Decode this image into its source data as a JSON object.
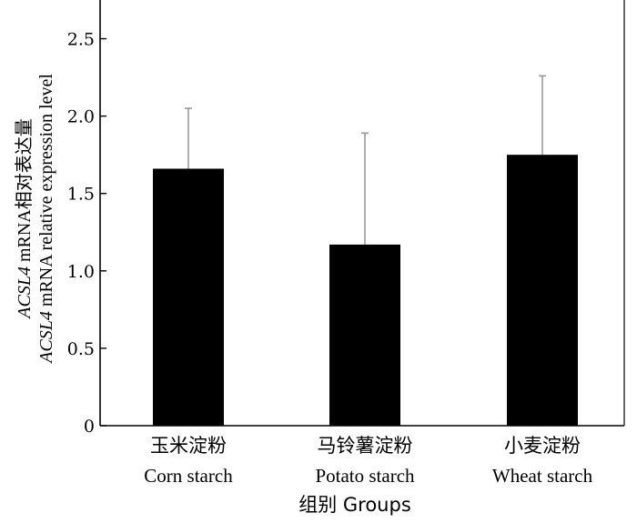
{
  "chart_data": {
    "type": "bar",
    "categories": [
      {
        "zh": "玉米淀粉",
        "en": "Corn starch"
      },
      {
        "zh": "马铃薯淀粉",
        "en": "Potato starch"
      },
      {
        "zh": "小麦淀粉",
        "en": "Wheat starch"
      }
    ],
    "values": [
      1.66,
      1.17,
      1.75
    ],
    "error_bars": [
      0.39,
      0.72,
      0.51
    ],
    "ylim": [
      0,
      2.75
    ],
    "yticks": [
      "0",
      "0.5",
      "1.0",
      "1.5",
      "2.0",
      "2.5"
    ],
    "ytick_values": [
      0,
      0.5,
      1.0,
      1.5,
      2.0,
      2.5
    ],
    "xlabel": "组别 Groups",
    "ylabel_line1": {
      "italic": "ACSL4",
      "rest": " mRNA相对表达量"
    },
    "ylabel_line2": {
      "italic": "ACSL4",
      "rest": " mRNA relative expression level"
    },
    "grid": false,
    "bar_color": "#000000",
    "error_bar_color": "#999999"
  }
}
